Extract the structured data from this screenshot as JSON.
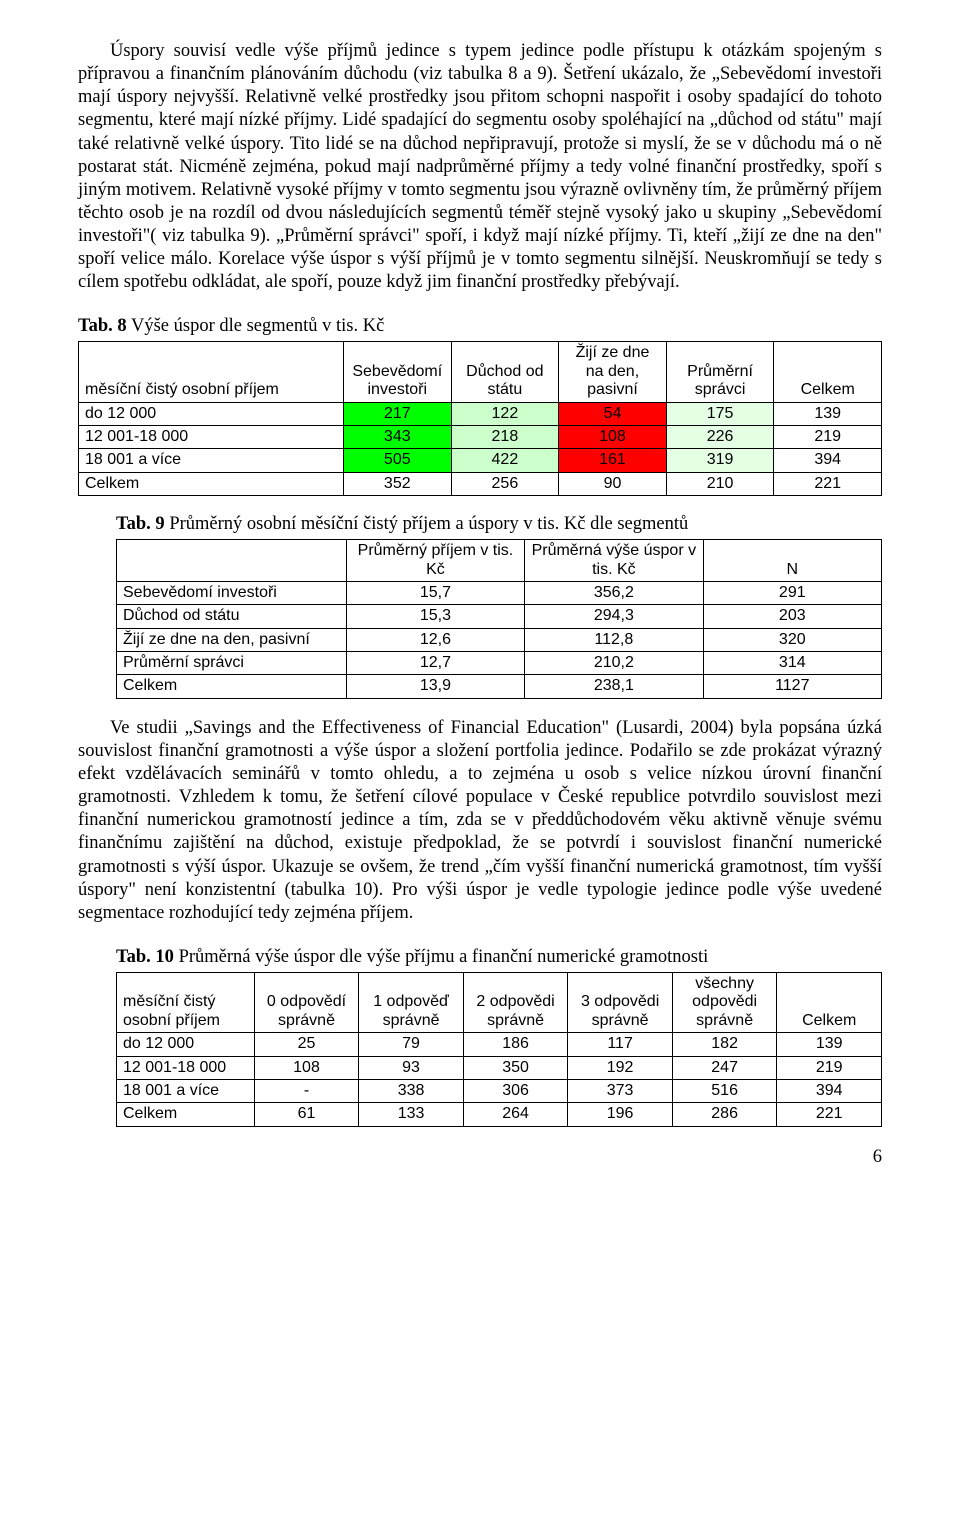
{
  "paragraph1": "Úspory souvisí vedle výše příjmů jedince s typem jedince podle přístupu k otázkám spojeným s přípravou a finančním plánováním důchodu (viz tabulka 8 a 9). Šetření ukázalo, že „Sebevědomí investoři mají úspory nejvyšší. Relativně velké prostředky jsou přitom schopni naspořit i osoby spadající do tohoto segmentu, které mají nízké příjmy. Lidé spadající do segmentu osoby spoléhající na „důchod od státu\" mají také relativně velké úspory. Tito lidé se na důchod nepřipravují, protože si myslí, že se v důchodu má o ně postarat stát. Nicméně zejména, pokud mají nadprůměrné příjmy a tedy volné finanční prostředky, spoří s jiným motivem. Relativně vysoké příjmy v tomto segmentu jsou výrazně ovlivněny tím, že průměrný příjem těchto osob je na rozdíl od dvou následujících segmentů téměř stejně vysoký jako u skupiny „Sebevědomí investoři\"( viz tabulka 9). „Průměrní správci\" spoří, i když mají nízké příjmy. Ti, kteří „žijí ze dne na den\" spoří velice málo. Korelace výše úspor s výší příjmů je v tomto segmentu silnější. Neuskromňují se tedy s cílem spotřebu odkládat, ale spoří, pouze když jim finanční prostředky přebývají.",
  "paragraph2": "Ve studii „Savings and the Effectiveness of Financial Education\" (Lusardi, 2004) byla popsána úzká souvislost finanční gramotnosti a výše úspor a složení portfolia jedince. Podařilo se zde prokázat výrazný efekt vzdělávacích seminářů v tomto ohledu, a to zejména u osob s velice nízkou úrovní finanční gramotnosti. Vzhledem k tomu, že šetření cílové populace v České republice potvrdilo souvislost mezi finanční numerickou gramotností jedince a tím, zda se v předdůchodovém věku aktivně věnuje svému finančnímu zajištění na důchod, existuje předpoklad, že se potvrdí i souvislost finanční numerické gramotnosti s výší úspor. Ukazuje se ovšem, že trend „čím vyšší finanční numerická gramotnost, tím vyšší úspory\" není konzistentní (tabulka 10). Pro výši úspor je vedle typologie jedince podle výše uvedené segmentace rozhodující tedy zejména příjem.",
  "page_number": "6",
  "tab8": {
    "caption_prefix": "Tab. 8",
    "caption_rest": " Výše úspor dle segmentů v tis. Kč",
    "header": [
      "měsíční čistý osobní příjem",
      "Sebevědomí investoři",
      "Důchod od státu",
      "Žijí ze dne na den, pasivní",
      "Průměrní správci",
      "Celkem"
    ],
    "rows": [
      {
        "label": "do 12 000",
        "cells": [
          "217",
          "122",
          "54",
          "175",
          "139"
        ],
        "colors": [
          "#00ff00",
          "#ccffcc",
          "#ff0000",
          "#e5ffe5",
          "#ffffff"
        ]
      },
      {
        "label": "12 001-18 000",
        "cells": [
          "343",
          "218",
          "108",
          "226",
          "219"
        ],
        "colors": [
          "#00ff00",
          "#ccffcc",
          "#ff0000",
          "#e5ffe5",
          "#ffffff"
        ]
      },
      {
        "label": "18 001 a více",
        "cells": [
          "505",
          "422",
          "161",
          "319",
          "394"
        ],
        "colors": [
          "#00ff00",
          "#ccffcc",
          "#ff0000",
          "#e5ffe5",
          "#ffffff"
        ]
      },
      {
        "label": "Celkem",
        "cells": [
          "352",
          "256",
          "90",
          "210",
          "221"
        ],
        "colors": [
          "#ffffff",
          "#ffffff",
          "#ffffff",
          "#ffffff",
          "#ffffff"
        ]
      }
    ]
  },
  "tab9": {
    "caption_prefix": "Tab. 9",
    "caption_rest": " Průměrný osobní měsíční čistý příjem a úspory v tis. Kč dle segmentů",
    "header": [
      "",
      "Průměrný příjem v tis. Kč",
      "Průměrná výše úspor v tis. Kč",
      "N"
    ],
    "rows": [
      {
        "label": "Sebevědomí investoři",
        "cells": [
          "15,7",
          "356,2",
          "291"
        ]
      },
      {
        "label": "Důchod od státu",
        "cells": [
          "15,3",
          "294,3",
          "203"
        ]
      },
      {
        "label": "Žijí ze dne na den, pasivní",
        "cells": [
          "12,6",
          "112,8",
          "320"
        ]
      },
      {
        "label": "Průměrní správci",
        "cells": [
          "12,7",
          "210,2",
          "314"
        ]
      },
      {
        "label": "Celkem",
        "cells": [
          "13,9",
          "238,1",
          "1127"
        ]
      }
    ]
  },
  "tab10": {
    "caption_prefix": "Tab. 10",
    "caption_rest": " Průměrná výše úspor dle výše příjmu a finanční  numerické gramotnosti",
    "header": [
      "měsíční čistý osobní příjem",
      "0 odpovědí správně",
      "1 odpověď správně",
      "2 odpovědi správně",
      "3 odpovědi správně",
      "všechny odpovědi správně",
      "Celkem"
    ],
    "rows": [
      {
        "label": "do 12 000",
        "cells": [
          "25",
          "79",
          "186",
          "117",
          "182",
          "139"
        ]
      },
      {
        "label": "12 001-18 000",
        "cells": [
          "108",
          "93",
          "350",
          "192",
          "247",
          "219"
        ]
      },
      {
        "label": "18 001 a více",
        "cells": [
          "-",
          "338",
          "306",
          "373",
          "516",
          "394"
        ]
      },
      {
        "label": "Celkem",
        "cells": [
          "61",
          "133",
          "264",
          "196",
          "286",
          "221"
        ]
      }
    ]
  }
}
